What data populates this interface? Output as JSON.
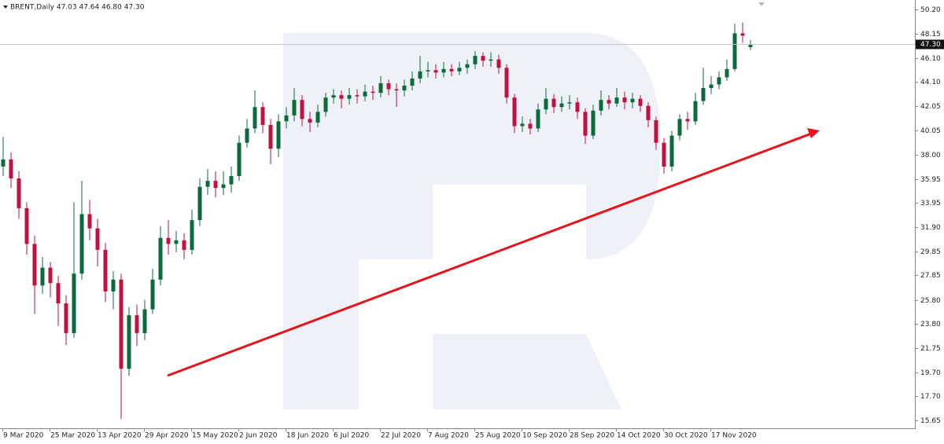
{
  "chart_data": {
    "type": "candlestick",
    "title": "BRENT,Daily  47.03 47.64 46.80 47.30",
    "up_color": "#0b6b3a",
    "down_color": "#c2103f",
    "categories": [
      "9 Mar 2020",
      null,
      null,
      null,
      null,
      null,
      "25 Mar 2020",
      null,
      null,
      null,
      null,
      null,
      "13 Apr 2020",
      null,
      null,
      null,
      null,
      null,
      "29 Apr 2020",
      null,
      null,
      null,
      null,
      null,
      "15 May 2020",
      null,
      null,
      null,
      null,
      null,
      "2 Jun 2020",
      null,
      null,
      null,
      null,
      null,
      "18 Jun 2020",
      null,
      null,
      null,
      null,
      null,
      "6 Jul 2020",
      null,
      null,
      null,
      null,
      null,
      "22 Jul 2020",
      null,
      null,
      null,
      null,
      null,
      "7 Aug 2020",
      null,
      null,
      null,
      null,
      null,
      "25 Aug 2020",
      null,
      null,
      null,
      null,
      null,
      "10 Sep 2020",
      null,
      null,
      null,
      null,
      null,
      "28 Sep 2020",
      null,
      null,
      null,
      null,
      null,
      "14 Oct 2020",
      null,
      null,
      null,
      null,
      null,
      "30 Oct 2020",
      null,
      null,
      null,
      null,
      null,
      "17 Nov 2020",
      null,
      null,
      null,
      null,
      null
    ],
    "open": [
      37.0,
      37.6,
      36.0,
      33.5,
      30.5,
      27.0,
      28.5,
      27.2,
      25.5,
      23.0,
      28.0,
      33.0,
      31.8,
      30.0,
      26.5,
      27.5,
      20.0,
      24.5,
      23.0,
      25.0,
      27.5,
      31.0,
      30.5,
      30.8,
      30.0,
      32.5,
      35.3,
      35.8,
      35.2,
      35.5,
      36.2,
      39.0,
      40.2,
      42.0,
      40.5,
      38.5,
      40.8,
      41.3,
      42.6,
      41.0,
      40.7,
      41.6,
      42.8,
      43.0,
      42.7,
      43.0,
      42.9,
      43.3,
      43.2,
      44.0,
      43.5,
      43.4,
      43.8,
      44.4,
      45.0,
      45.1,
      44.9,
      45.2,
      45.0,
      45.3,
      45.6,
      46.3,
      45.9,
      46.0,
      45.3,
      42.8,
      40.4,
      40.6,
      40.2,
      41.8,
      42.7,
      42.0,
      42.3,
      42.4,
      41.6,
      39.6,
      41.7,
      42.6,
      42.3,
      42.8,
      42.4,
      42.7,
      42.1,
      40.9,
      39.0,
      37.0,
      39.6,
      41.0,
      40.8,
      42.5,
      43.6,
      43.9,
      44.5,
      45.2,
      48.2,
      47.03
    ],
    "high": [
      39.5,
      38.2,
      36.6,
      34.0,
      31.2,
      29.4,
      29.0,
      27.8,
      26.2,
      34.0,
      35.8,
      34.2,
      32.6,
      30.6,
      28.2,
      28.0,
      25.2,
      25.4,
      25.8,
      28.4,
      32.0,
      32.5,
      31.6,
      31.4,
      33.4,
      36.0,
      36.8,
      36.6,
      36.6,
      37.0,
      39.6,
      41.0,
      43.4,
      42.4,
      41.0,
      41.4,
      42.0,
      43.6,
      43.0,
      41.6,
      42.2,
      43.2,
      43.5,
      43.4,
      43.6,
      43.5,
      43.9,
      43.8,
      44.6,
      44.3,
      44.0,
      44.3,
      45.0,
      46.3,
      45.8,
      45.6,
      45.8,
      45.6,
      45.8,
      46.0,
      46.7,
      46.6,
      46.6,
      46.4,
      45.6,
      43.1,
      41.2,
      41.0,
      42.3,
      43.6,
      43.1,
      42.9,
      43.0,
      42.8,
      41.9,
      42.2,
      43.4,
      43.0,
      43.6,
      43.3,
      43.2,
      43.0,
      42.4,
      41.2,
      39.4,
      40.0,
      41.4,
      41.6,
      43.2,
      45.3,
      44.6,
      45.0,
      46.0,
      49.0,
      49.1,
      47.64
    ],
    "low": [
      36.2,
      35.2,
      32.6,
      29.6,
      24.6,
      26.3,
      26.0,
      23.6,
      22.0,
      22.6,
      27.5,
      30.8,
      28.6,
      25.6,
      25.0,
      15.8,
      19.4,
      21.9,
      22.4,
      24.6,
      27.0,
      29.6,
      29.8,
      29.2,
      29.6,
      32.0,
      34.6,
      34.4,
      34.6,
      34.8,
      35.8,
      38.6,
      39.8,
      39.8,
      37.2,
      37.8,
      40.2,
      40.8,
      40.4,
      39.9,
      40.3,
      41.2,
      42.3,
      41.9,
      42.2,
      42.3,
      42.5,
      42.6,
      42.8,
      43.0,
      42.0,
      42.9,
      43.4,
      44.0,
      44.5,
      44.4,
      44.5,
      44.6,
      44.7,
      44.8,
      45.2,
      45.4,
      45.4,
      44.8,
      42.3,
      39.8,
      39.9,
      39.7,
      39.9,
      41.4,
      41.5,
      41.6,
      41.8,
      41.0,
      38.9,
      39.3,
      41.3,
      41.8,
      42.0,
      41.8,
      41.9,
      41.6,
      40.3,
      38.4,
      36.4,
      36.6,
      39.2,
      40.1,
      40.5,
      42.2,
      43.1,
      43.5,
      44.2,
      45.0,
      47.4,
      46.8
    ],
    "close": [
      37.6,
      36.0,
      33.5,
      30.5,
      27.0,
      28.5,
      27.2,
      25.5,
      23.0,
      28.0,
      33.0,
      31.8,
      30.0,
      26.5,
      27.5,
      20.0,
      24.5,
      23.0,
      25.0,
      27.5,
      31.0,
      30.5,
      30.8,
      30.0,
      32.5,
      35.3,
      35.8,
      35.2,
      35.5,
      36.2,
      39.0,
      40.2,
      42.0,
      40.5,
      38.5,
      40.8,
      41.3,
      42.6,
      41.0,
      40.7,
      41.6,
      42.8,
      43.0,
      42.7,
      43.0,
      42.9,
      43.3,
      43.2,
      44.0,
      43.5,
      43.4,
      43.8,
      44.4,
      45.0,
      45.1,
      44.9,
      45.2,
      45.0,
      45.3,
      45.6,
      46.3,
      45.9,
      46.0,
      45.3,
      42.8,
      40.4,
      40.6,
      40.2,
      41.8,
      42.7,
      42.0,
      42.3,
      42.4,
      41.6,
      39.6,
      41.7,
      42.6,
      42.3,
      42.8,
      42.4,
      42.7,
      42.1,
      40.9,
      39.0,
      37.0,
      39.6,
      41.0,
      40.8,
      42.5,
      43.6,
      43.9,
      44.5,
      45.2,
      48.2,
      48.0,
      47.3
    ],
    "ylim": [
      15.0,
      51.0
    ],
    "yticks": [
      {
        "value": 50.2,
        "label": "50.20"
      },
      {
        "value": 48.15,
        "label": "48.15"
      },
      {
        "value": 46.1,
        "label": "46.10"
      },
      {
        "value": 44.1,
        "label": "44.10"
      },
      {
        "value": 42.05,
        "label": "42.05"
      },
      {
        "value": 40.05,
        "label": "40.05"
      },
      {
        "value": 38.0,
        "label": "38.00"
      },
      {
        "value": 35.95,
        "label": "35.95"
      },
      {
        "value": 33.95,
        "label": "33.95"
      },
      {
        "value": 31.9,
        "label": "31.90"
      },
      {
        "value": 29.85,
        "label": "29.85"
      },
      {
        "value": 27.85,
        "label": "27.85"
      },
      {
        "value": 25.8,
        "label": "25.80"
      },
      {
        "value": 23.8,
        "label": "23.80"
      },
      {
        "value": 21.75,
        "label": "21.75"
      },
      {
        "value": 19.7,
        "label": "19.70"
      },
      {
        "value": 17.7,
        "label": "17.70"
      },
      {
        "value": 15.65,
        "label": "15.65"
      }
    ],
    "last_price": {
      "value": 47.3,
      "label": "47.30"
    }
  }
}
